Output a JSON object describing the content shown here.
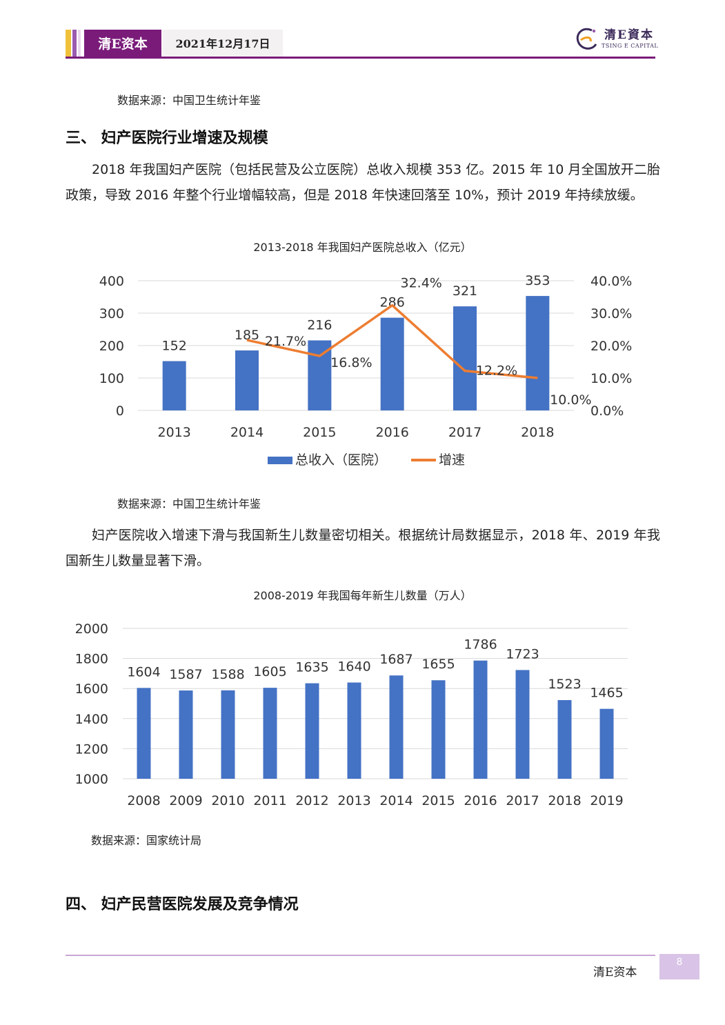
{
  "header": {
    "brand": "清E资本",
    "date": "2021年12月17日",
    "logo_cn": "清E資本",
    "logo_en": "TSING E CAPITAL",
    "colors": {
      "brand": "#7a1b7a",
      "stripe_gold": "#f0c23c",
      "stripe_purple": "#9a5bb0"
    }
  },
  "sources": {
    "top": "数据来源：中国卫生统计年鉴",
    "chart1": "数据来源：中国卫生统计年鉴",
    "chart2": "数据来源：国家统计局"
  },
  "section3": {
    "heading": "三、 妇产医院行业增速及规模",
    "paragraph": "2018 年我国妇产医院（包括民营及公立医院）总收入规模 353 亿。2015 年 10 月全国放开二胎政策，导致 2016 年整个行业增幅较高，但是 2018 年快速回落至 10%，预计 2019 年持续放缓。"
  },
  "section3b": {
    "paragraph": "妇产医院收入增速下滑与我国新生儿数量密切相关。根据统计局数据显示，2018 年、2019 年我国新生儿数量显著下滑。"
  },
  "section4": {
    "heading": "四、 妇产民营医院发展及竞争情况"
  },
  "footer": {
    "brand": "清E资本",
    "page": "8"
  },
  "chart_data": [
    {
      "type": "bar",
      "title": "2013-2018 年我国妇产医院总收入（亿元）",
      "categories": [
        "2013",
        "2014",
        "2015",
        "2016",
        "2017",
        "2018"
      ],
      "y_ticks": [
        "0",
        "100",
        "200",
        "300",
        "400"
      ],
      "y2_ticks": [
        "0.0%",
        "10.0%",
        "20.0%",
        "30.0%",
        "40.0%"
      ],
      "ylim": [
        0,
        400
      ],
      "y2lim": [
        0,
        40
      ],
      "series": [
        {
          "name": "总收入（医院）",
          "type": "bar",
          "color": "#4472c4",
          "values": [
            152,
            185,
            216,
            286,
            321,
            353
          ],
          "labels": [
            "152",
            "185",
            "216",
            "286",
            "321",
            "353"
          ]
        },
        {
          "name": "增速",
          "type": "line",
          "axis": "secondary",
          "color": "#ed7d31",
          "values": [
            null,
            21.7,
            16.8,
            32.4,
            12.2,
            10.0
          ],
          "labels": [
            "",
            "21.7%",
            "16.8%",
            "32.4%",
            "12.2%",
            "10.0%"
          ]
        }
      ],
      "legend_position": "bottom",
      "grid": true
    },
    {
      "type": "bar",
      "title": "2008-2019 年我国每年新生儿数量（万人）",
      "categories": [
        "2008",
        "2009",
        "2010",
        "2011",
        "2012",
        "2013",
        "2014",
        "2015",
        "2016",
        "2017",
        "2018",
        "2019"
      ],
      "y_ticks": [
        "1000",
        "1200",
        "1400",
        "1600",
        "1800",
        "2000"
      ],
      "ylim": [
        1000,
        2000
      ],
      "series": [
        {
          "type": "bar",
          "color": "#4472c4",
          "values": [
            1604,
            1587,
            1588,
            1605,
            1635,
            1640,
            1687,
            1655,
            1786,
            1723,
            1523,
            1465
          ],
          "labels": [
            "1604",
            "1587",
            "1588",
            "1605",
            "1635",
            "1640",
            "1687",
            "1655",
            "1786",
            "1723",
            "1523",
            "1465"
          ]
        }
      ],
      "grid": true
    }
  ]
}
